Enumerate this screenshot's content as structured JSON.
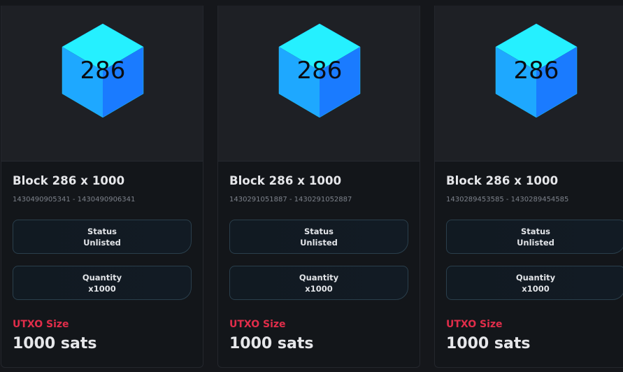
{
  "cards": [
    {
      "image_text": "286",
      "title": "Block 286 x 1000",
      "range": "1430490905341 - 1430490906341",
      "status_label": "Status",
      "status_value": "Unlisted",
      "quantity_label": "Quantity",
      "quantity_value": "x1000",
      "utxo_label": "UTXO Size",
      "utxo_value": "1000 sats"
    },
    {
      "image_text": "286",
      "title": "Block 286 x 1000",
      "range": "1430291051887 - 1430291052887",
      "status_label": "Status",
      "status_value": "Unlisted",
      "quantity_label": "Quantity",
      "quantity_value": "x1000",
      "utxo_label": "UTXO Size",
      "utxo_value": "1000 sats"
    },
    {
      "image_text": "286",
      "title": "Block 286 x 1000",
      "range": "1430289453585 - 1430289454585",
      "status_label": "Status",
      "status_value": "Unlisted",
      "quantity_label": "Quantity",
      "quantity_value": "x1000",
      "utxo_label": "UTXO Size",
      "utxo_value": "1000 sats"
    }
  ],
  "colors": {
    "cube_light": "#25f0ff",
    "cube_left": "#1ea8ff",
    "cube_right": "#1a7bff",
    "accent_red": "#e12d4a"
  },
  "icons": {
    "block_image": "cube-icon"
  }
}
